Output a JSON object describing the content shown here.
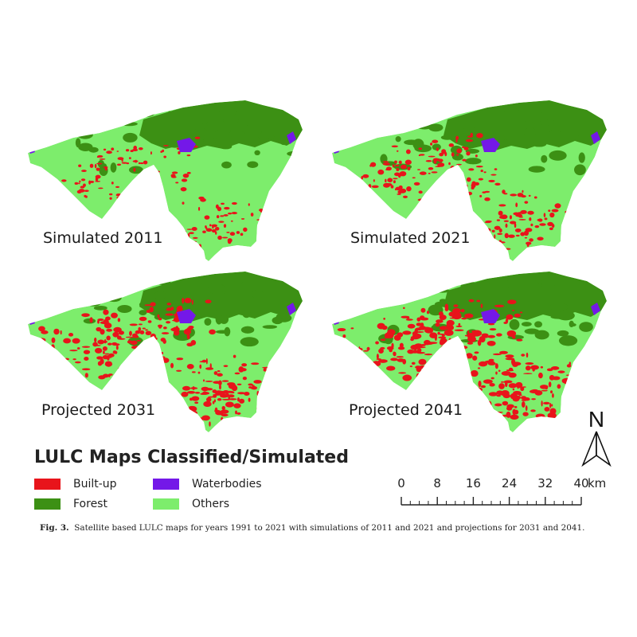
{
  "panels": [
    {
      "label": "Simulated 2011",
      "builtup_level": 0.18
    },
    {
      "label": "Simulated 2021",
      "builtup_level": 0.32
    },
    {
      "label": "Projected 2031",
      "builtup_level": 0.5
    },
    {
      "label": "Projected 2041",
      "builtup_level": 0.62
    }
  ],
  "legend": {
    "title": "LULC Maps Classified/Simulated",
    "items": [
      {
        "label": "Built-up",
        "color": "#e8141b"
      },
      {
        "label": "Waterbodies",
        "color": "#7418e8"
      },
      {
        "label": "Forest",
        "color": "#3c9014"
      },
      {
        "label": "Others",
        "color": "#7ded6c"
      }
    ]
  },
  "north": {
    "letter": "N"
  },
  "scale": {
    "ticks": [
      "0",
      "8",
      "16",
      "24",
      "32",
      "40"
    ],
    "unit": "km"
  },
  "caption": {
    "prefix": "Fig. 3.",
    "text": "Satellite based LULC maps for years 1991 to 2021 with simulations of 2011 and 2021 and projections for 2031 and 2041."
  }
}
